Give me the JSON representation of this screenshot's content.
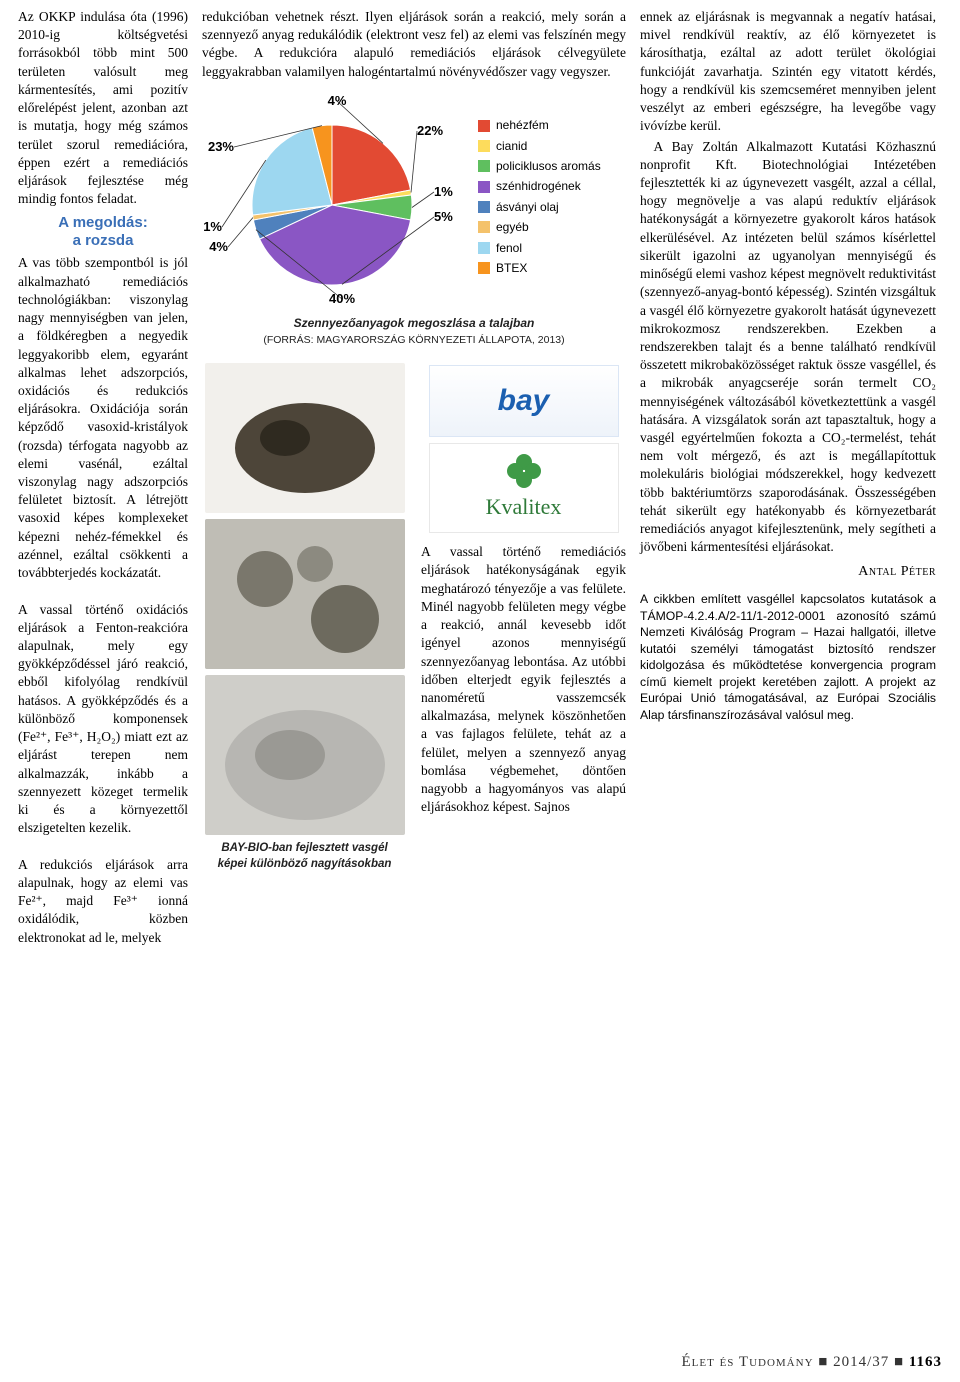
{
  "col_left": {
    "intro": "Az OKKP indulása óta (1996) 2010-ig költségvetési forrásokból több mint 500 területen valósult meg kármentesítés, ami pozitív előrelépést jelent, azonban azt is mutatja, hogy még számos terület szorul remediációra, éppen ezért a remediációs eljárások fejlesztése még mindig fontos feladat.",
    "heading1": "A megoldás:",
    "heading2": "a rozsda",
    "body": "A vas több szempontból is jól alkalmazható remediációs technológiákban: viszonylag nagy mennyiségben van jelen, a földkéregben a negyedik leggyakoribb elem, egyaránt alkalmas lehet adszorpciós, oxidációs és redukciós eljárásokra. Oxidációja során képződő vasoxid-kristályok (rozsda) térfogata nagyobb az elemi vasénál, ezáltal viszonylag nagy adszorpciós felületet biztosít. A létrejött vasoxid képes komplexeket képezni nehéz-fémekkel és azénnel, ezáltal csökkenti a továbbterjedés kockázatát.\n\nA vassal történő oxidációs eljárások a Fenton-reakcióra alapulnak, mely egy gyökképződéssel járó reakció, ebből kifolyólag rendkívül hatásos. A gyökképződés és a különböző komponensek (Fe²⁺, Fe³⁺, H₂O₂) miatt ezt az eljárást terepen nem alkalmazzák, inkább a szennyezett közeget termelik ki és a környezettől elszigetelten kezelik.\n\nA redukciós eljárások arra alapulnak, hogy az elemi vas Fe²⁺, majd Fe³⁺ ionná oxidálódik, közben elektronokat ad le, melyek"
  },
  "col_mid": {
    "top": "redukcióban vehetnek részt. Ilyen eljárások során a reakció, mely során a szennyező anyag redukálódik (elektront vesz fel) az elemi vas felszínén megy végbe. A redukcióra alapuló remediációs eljárások célvegyülete leggyakrabban valamilyen halogéntartalmú növényvédőszer vagy vegyszer.",
    "bottom": "A vassal történő remediációs eljárások hatékonyságának egyik meghatározó tényezője a vas felülete. Minél nagyobb felületen megy végbe a reakció, annál kevesebb időt igényel azonos mennyiségű szennyezőanyag lebontása. Az utóbbi időben elterjedt egyik fejlesztés a nanoméretű vasszemcsék alkalmazása, melynek köszönhetően a vas fajlagos felülete, tehát az a felület, melyen a szennyező anyag bomlása végbemehet, döntően nagyobb a hagyományos vas alapú eljárásokhoz képest. Sajnos",
    "caption": "Szennyezőanyagok megoszlása a talajban",
    "source": "(FORRÁS: MAGYARORSZÁG KÖRNYEZETI ÁLLAPOTA, 2013)",
    "logo_text": "bay",
    "kvalitex_text": "Kvalitex",
    "img_caption1": "BAY-BIO-ban fejlesztett vasgél",
    "img_caption2": "képei különböző nagyításokban"
  },
  "col_right": {
    "body1": "ennek az eljárásnak is megvannak a negatív hatásai, mivel rendkívül reaktív, az élő környezetet is károsíthatja, ezáltal az adott terület ökológiai funkcióját zavarhatja. Szintén egy vitatott kérdés, hogy a rendkívül kis szemcseméret mennyiben jelent veszélyt az emberi egészségre, ha levegőbe vagy ivóvízbe kerül.",
    "body2": "A Bay Zoltán Alkalmazott Kutatási Közhasznú nonprofit Kft. Biotechnológiai Intézetében fejlesztették ki az úgynevezett vasgélt, azzal a céllal, hogy megnövelje a vas alapú reduktív eljárások hatékonyságát a környezetre gyakorolt káros hatások elkerülésével. Az intézeten belül számos kísérlettel sikerült igazolni az ugyanolyan mennyiségű és minőségű elemi vashoz képest megnövelt reduktivitást (szennyező-anyag-bontó képesség). Szintén vizsgáltuk a vasgél élő környezetre gyakorolt hatását úgynevezett mikrokozmosz rendszerekben. Ezekben a rendszerekben talajt és a benne található rendkívül összetett mikrobaközösséget raktuk össze vasgéllel, és a mikrobák anyagcseréje során termelt CO₂ mennyiségének változásából következtettünk a vasgél hatására. A vizsgálatok során azt tapasztaltuk, hogy a vasgél egyértelműen fokozta a CO₂-termelést, tehát nem volt mérgező, és azt is megállapítottuk molekuláris biológiai módszerekkel, hogy kedvezett több baktériumtörzs szaporodásának. Összességében tehát sikerült egy hatékonyabb és környezetbarát remediációs anyagot kifejlesztenünk, mely segítheti a jövőbeni kármentesítési eljárásokat.",
    "author": "Antal Péter",
    "grant": "A cikkben említett vasgéllel kapcsolatos kutatások a TÁMOP-4.2.4.A/2-11/1-2012-0001 azonosító számú Nemzeti Kiválóság Program – Hazai hallgatói, illetve kutatói személyi támogatást biztosító rendszer kidolgozása és működtetése konvergencia program című kiemelt projekt keretében zajlott. A projekt az Európai Unió támogatásával, az Európai Szociális Alap társfinanszírozásával valósul meg."
  },
  "chart": {
    "type": "pie",
    "slices": [
      {
        "label": "nehézfém",
        "value": 22,
        "color": "#e24a33"
      },
      {
        "label": "cianid",
        "value": 1,
        "color": "#fddc5c"
      },
      {
        "label": "policiklusos aromás",
        "value": 5,
        "color": "#5fbf5f"
      },
      {
        "label": "szénhidrogének",
        "value": 40,
        "color": "#8a56c4"
      },
      {
        "label": "ásványi olaj",
        "value": 4,
        "color": "#4f81bd"
      },
      {
        "label": "egyéb",
        "value": 1,
        "color": "#f4c26b"
      },
      {
        "label": "fenol",
        "value": 23,
        "color": "#9dd7f0"
      },
      {
        "label": "BTEX",
        "value": 4,
        "color": "#f7941e"
      }
    ],
    "percent_labels": [
      "4%",
      "22%",
      "1%",
      "5%",
      "40%",
      "4%",
      "1%",
      "23%"
    ],
    "background": "#ffffff",
    "legend_font_size": 12
  },
  "sample_colors": {
    "rock1": "#4d4539",
    "rock2": "#6d6a5e",
    "rock3": "#b7b6b2"
  },
  "footer": {
    "magazine": "Élet és Tudomány",
    "issue": "2014/37",
    "page": "1163"
  }
}
